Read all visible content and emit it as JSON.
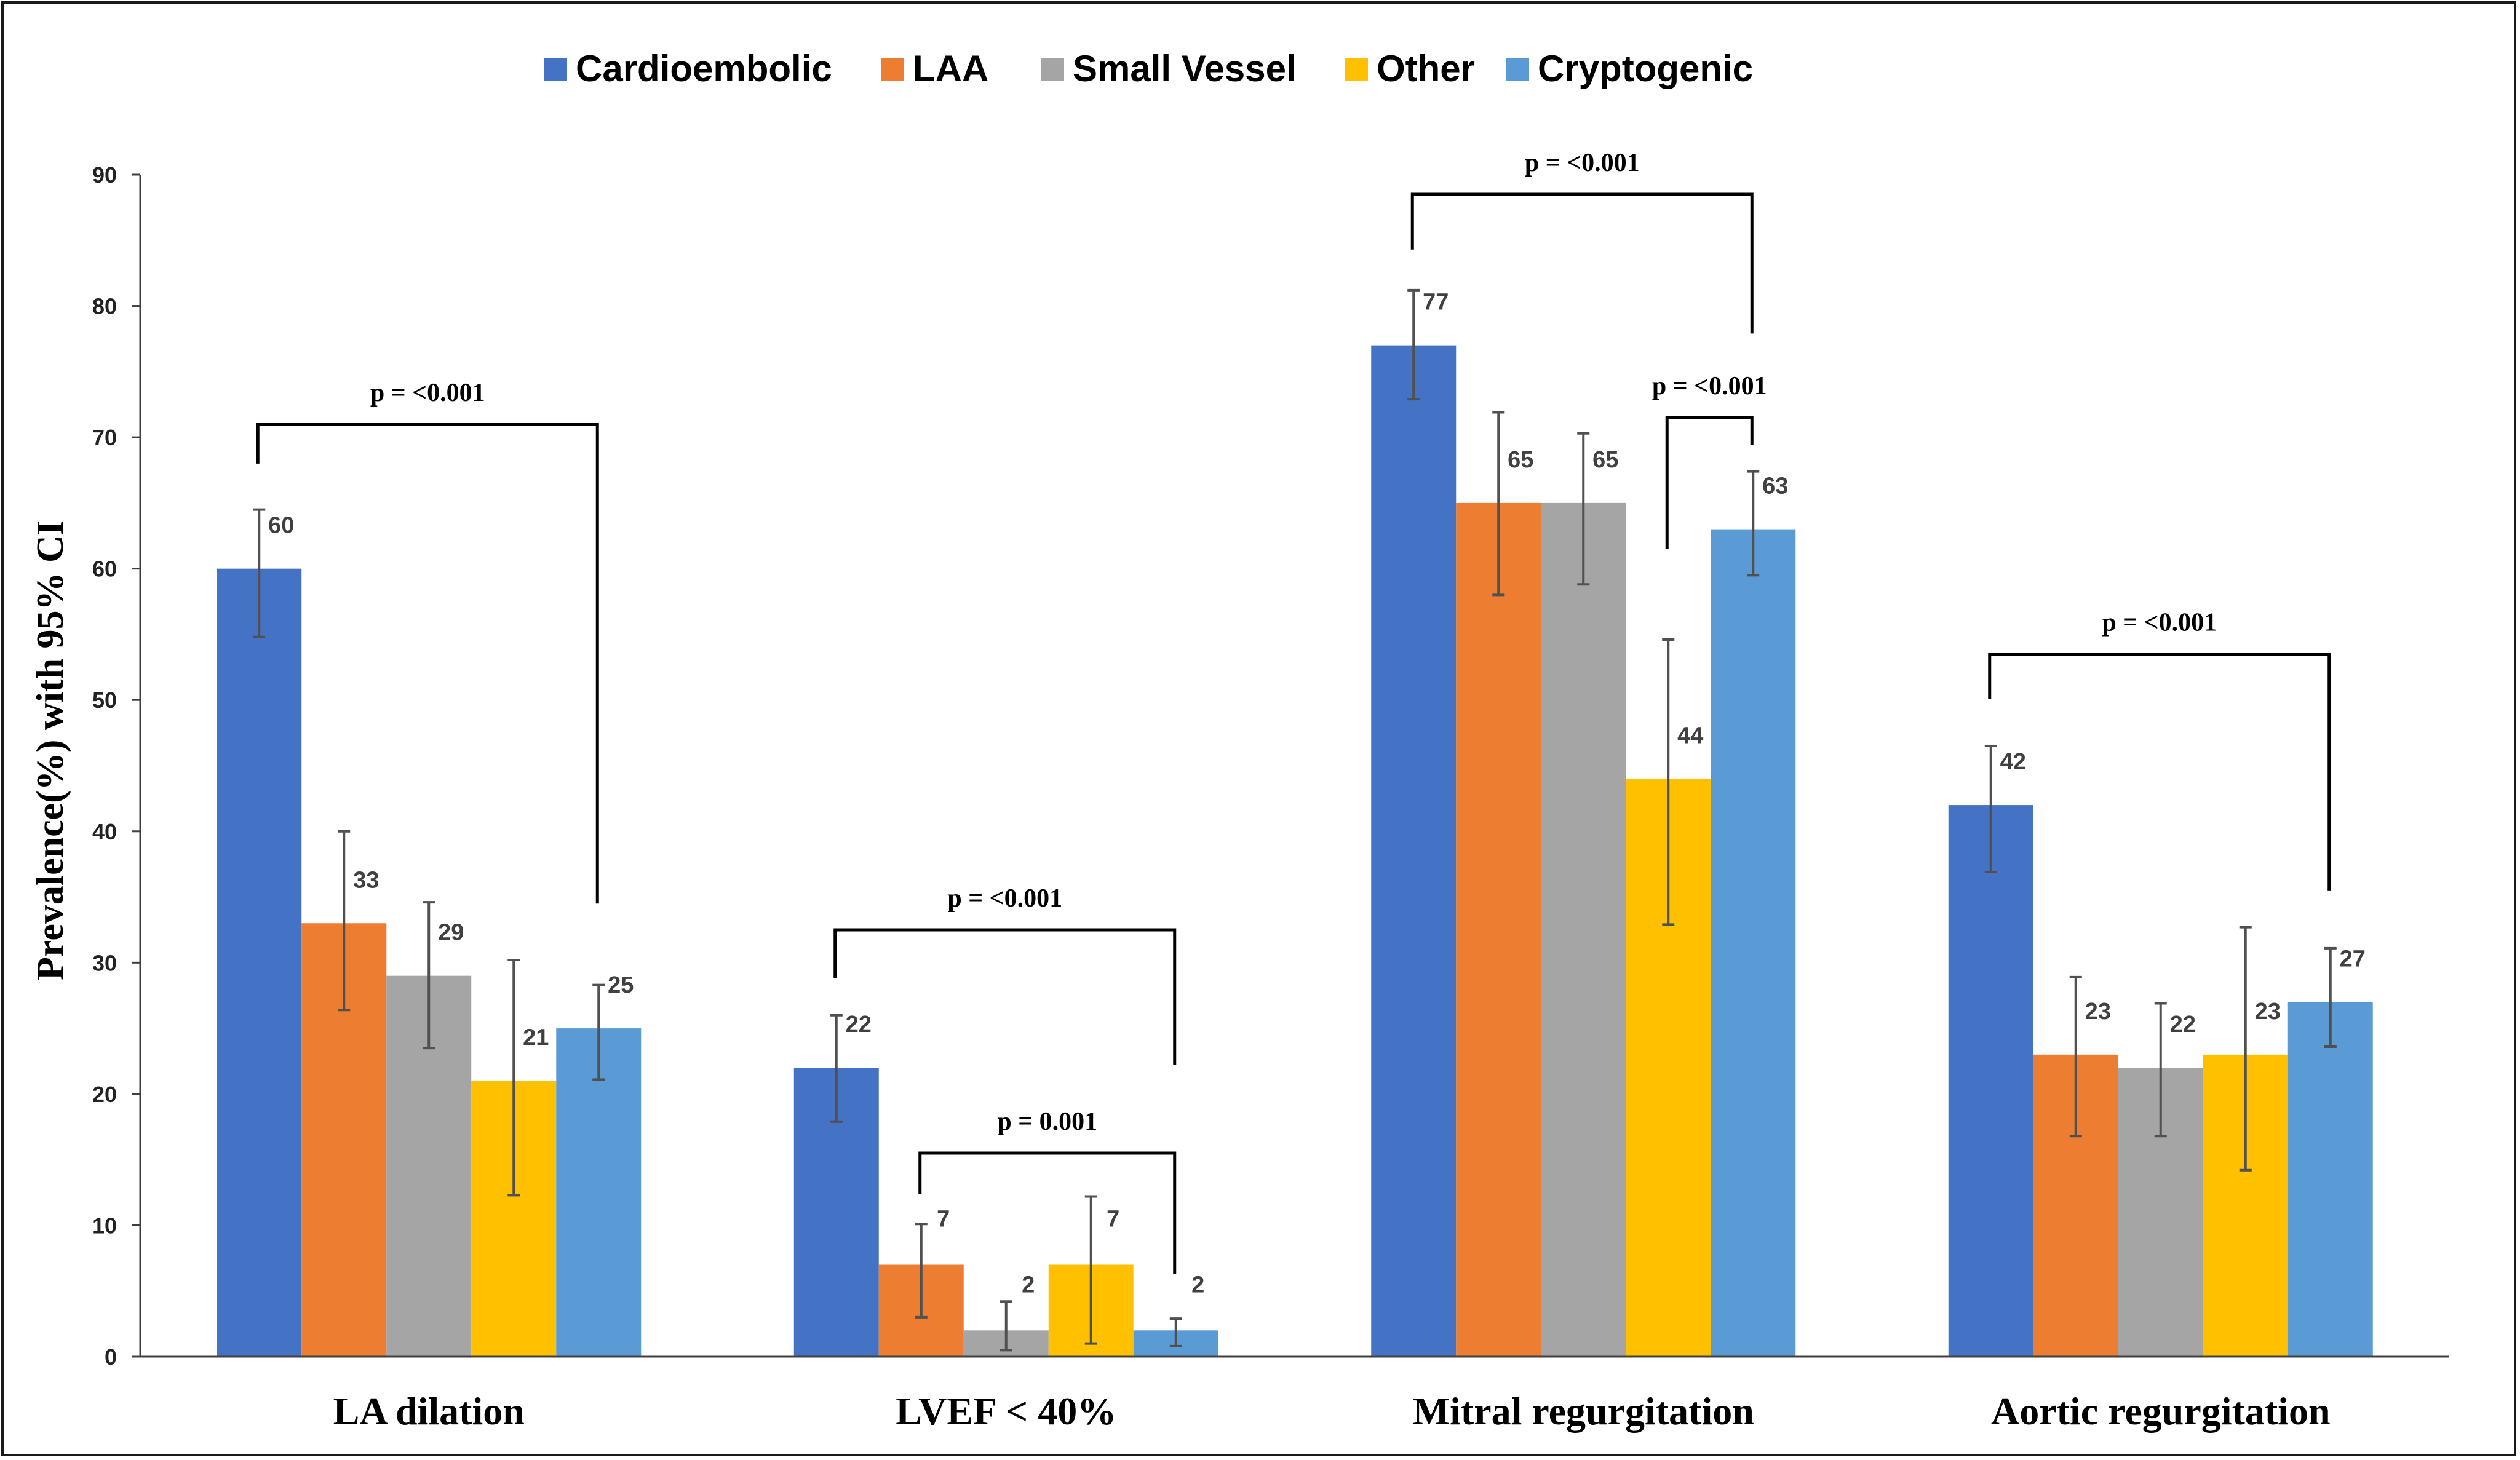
{
  "chart_data": {
    "type": "bar",
    "title": "",
    "xlabel": "",
    "ylabel": "Prevalence(%) with 95% CI",
    "ylim": [
      0,
      90
    ],
    "yticks": [
      0,
      10,
      20,
      30,
      40,
      50,
      60,
      70,
      80,
      90
    ],
    "grid": false,
    "legend_position": "top",
    "categories": [
      "LA dilation",
      "LVEF < 40%",
      "Mitral regurgitation",
      "Aortic regurgitation"
    ],
    "series": [
      {
        "name": "Cardioembolic",
        "color": "#4472C4",
        "values": [
          60,
          22,
          77,
          42
        ],
        "ci_low": [
          54.8,
          17.9,
          72.9,
          36.9
        ],
        "ci_high": [
          64.5,
          26.0,
          81.2,
          46.5
        ]
      },
      {
        "name": "LAA",
        "color": "#ED7D31",
        "values": [
          33,
          7,
          65,
          23
        ],
        "ci_low": [
          26.4,
          3.0,
          58.0,
          16.8
        ],
        "ci_high": [
          40.0,
          10.1,
          71.9,
          28.9
        ]
      },
      {
        "name": "Small Vessel",
        "color": "#A5A5A5",
        "values": [
          29,
          2,
          65,
          22
        ],
        "ci_low": [
          23.5,
          0.5,
          58.8,
          16.8
        ],
        "ci_high": [
          34.6,
          4.2,
          70.3,
          26.9
        ]
      },
      {
        "name": "Other",
        "color": "#FFC000",
        "values": [
          21,
          7,
          44,
          23
        ],
        "ci_low": [
          12.3,
          1.0,
          32.9,
          14.2
        ],
        "ci_high": [
          30.2,
          12.2,
          54.6,
          32.7
        ]
      },
      {
        "name": "Cryptogenic",
        "color": "#5B9BD5",
        "values": [
          25,
          2,
          63,
          27
        ],
        "ci_low": [
          21.1,
          0.8,
          59.5,
          23.6
        ],
        "ci_high": [
          28.3,
          2.9,
          67.4,
          31.1
        ]
      }
    ],
    "annotations": [
      {
        "text": "p = <0.001",
        "category": 0,
        "from_series": 0,
        "to_series": 4,
        "level": 71,
        "left_drop": 68,
        "right_drop": 34.5
      },
      {
        "text": "p = <0.001",
        "category": 1,
        "from_series": 0,
        "to_series": 4,
        "level": 32.5,
        "left_drop": 28.8,
        "right_drop": 22.2
      },
      {
        "text": "p = 0.001",
        "category": 1,
        "from_series": 1,
        "to_series": 4,
        "level": 15.5,
        "left_drop": 12.4,
        "right_drop": 6.3
      },
      {
        "text": "p = <0.001",
        "category": 2,
        "from_series": 0,
        "to_series": 4,
        "level": 88.5,
        "left_drop": 84.3,
        "right_drop": 77.9
      },
      {
        "text": "p = <0.001",
        "category": 2,
        "from_series": 3,
        "to_series": 4,
        "level": 71.5,
        "left_drop": 61.5,
        "right_drop": 69.4
      },
      {
        "text": "p = <0.001",
        "category": 3,
        "from_series": 0,
        "to_series": 4,
        "level": 53.5,
        "left_drop": 50.1,
        "right_drop": 35.5
      }
    ]
  }
}
